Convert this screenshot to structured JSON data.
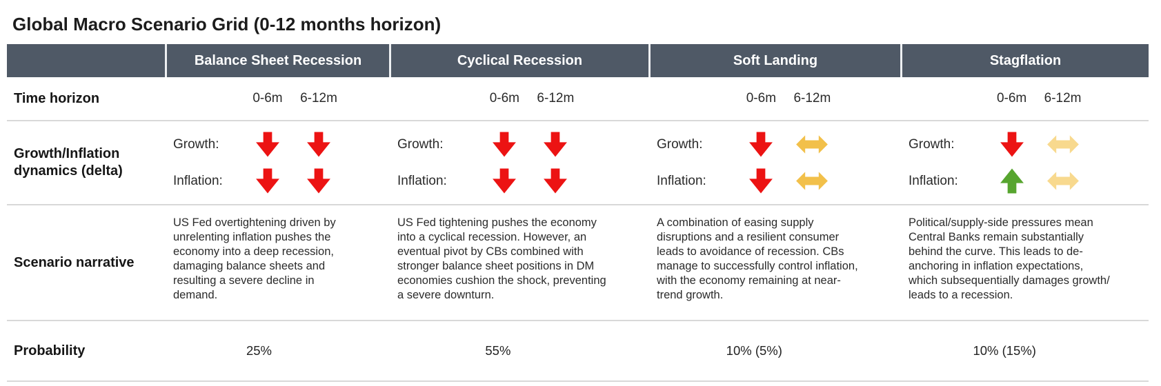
{
  "title": "Global Macro Scenario Grid (0-12 months horizon)",
  "row_labels": {
    "time_horizon": "Time horizon",
    "dynamics": "Growth/Inflation dynamics (delta)",
    "growth": "Growth:",
    "inflation": "Inflation:",
    "narrative": "Scenario narrative",
    "probability": "Probability"
  },
  "colors": {
    "header_bg": "#4f5966",
    "header_text": "#ffffff",
    "arrow_red": "#ec1313",
    "arrow_green": "#57a52f",
    "arrow_gold": "#f2c04a",
    "arrow_gold_light": "#f8d98e"
  },
  "scenarios": [
    {
      "name": "Balance Sheet Recession",
      "time_periods": [
        "0-6m",
        "6-12m"
      ],
      "growth_arrows": [
        "down-red",
        "down-red"
      ],
      "inflation_arrows": [
        "down-red",
        "down-red"
      ],
      "narrative": "US Fed overtightening driven by unrelenting inflation pushes the economy into a deep recession, damaging balance sheets and resulting a severe decline in demand.",
      "probability": "25%"
    },
    {
      "name": "Cyclical Recession",
      "time_periods": [
        "0-6m",
        "6-12m"
      ],
      "growth_arrows": [
        "down-red",
        "down-red"
      ],
      "inflation_arrows": [
        "down-red",
        "down-red"
      ],
      "narrative": "US Fed tightening pushes the economy into a cyclical recession. However, an eventual pivot by CBs combined with stronger balance sheet positions in DM economies cushion the shock, preventing a severe downturn.",
      "probability": "55%"
    },
    {
      "name": "Soft Landing",
      "time_periods": [
        "0-6m",
        "6-12m"
      ],
      "growth_arrows": [
        "down-red",
        "lr-gold"
      ],
      "inflation_arrows": [
        "down-red",
        "lr-gold"
      ],
      "narrative": "A combination of easing supply disruptions and a resilient consumer leads to avoidance of recession. CBs manage to successfully control inflation, with the economy remaining at near-trend growth.",
      "probability": "10% (5%)"
    },
    {
      "name": "Stagflation",
      "time_periods": [
        "0-6m",
        "6-12m"
      ],
      "growth_arrows": [
        "down-red",
        "lr-gold-light"
      ],
      "inflation_arrows": [
        "up-green",
        "lr-gold-light"
      ],
      "narrative": "Political/supply-side pressures mean Central Banks remain substantially behind the curve. This leads to de-anchoring in inflation expectations, which subsequentially damages growth/ leads to a recession.",
      "probability": "10% (15%)"
    }
  ]
}
